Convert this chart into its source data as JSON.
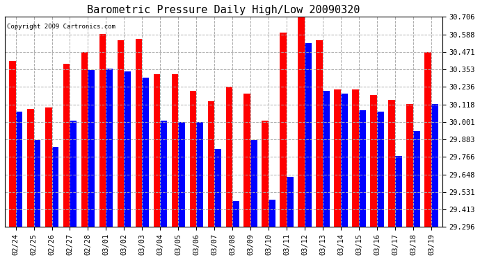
{
  "title": "Barometric Pressure Daily High/Low 20090320",
  "copyright": "Copyright 2009 Cartronics.com",
  "dates": [
    "02/24",
    "02/25",
    "02/26",
    "02/27",
    "02/28",
    "03/01",
    "03/02",
    "03/03",
    "03/04",
    "03/05",
    "03/06",
    "03/07",
    "03/08",
    "03/09",
    "03/10",
    "03/11",
    "03/12",
    "03/13",
    "03/14",
    "03/15",
    "03/16",
    "03/17",
    "03/18",
    "03/19"
  ],
  "highs": [
    30.41,
    30.09,
    30.1,
    30.39,
    30.47,
    30.59,
    30.55,
    30.56,
    30.32,
    30.32,
    30.21,
    30.14,
    30.24,
    30.19,
    30.01,
    30.6,
    30.71,
    30.55,
    30.22,
    30.22,
    30.18,
    30.15,
    30.12,
    30.47
  ],
  "lows": [
    30.07,
    29.88,
    29.83,
    30.01,
    30.35,
    30.36,
    30.34,
    30.3,
    30.01,
    30.0,
    30.0,
    29.82,
    29.47,
    29.88,
    29.48,
    29.63,
    30.53,
    30.21,
    30.19,
    30.08,
    30.07,
    29.77,
    29.94,
    30.12
  ],
  "yticks": [
    29.296,
    29.413,
    29.531,
    29.648,
    29.766,
    29.883,
    30.001,
    30.118,
    30.236,
    30.353,
    30.471,
    30.588,
    30.706
  ],
  "ymin": 29.296,
  "ymax": 30.706,
  "bar_width": 0.38,
  "high_color": "#FF0000",
  "low_color": "#0000FF",
  "bg_color": "#FFFFFF",
  "grid_color": "#AAAAAA",
  "title_fontsize": 11,
  "tick_fontsize": 7.5
}
